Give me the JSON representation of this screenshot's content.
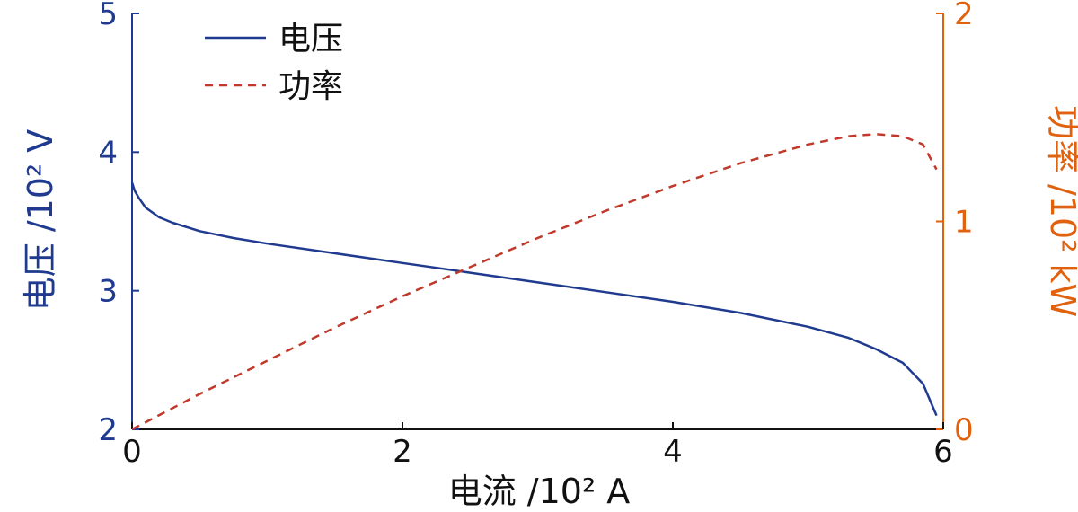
{
  "chart_data": {
    "type": "line",
    "xlabel": "电流 /10² A",
    "ylabel_left": "电压 /10² V",
    "ylabel_right": "功率 /10² kW",
    "xlim": [
      0,
      6
    ],
    "ylim_left": [
      2,
      5
    ],
    "ylim_right": [
      0,
      2
    ],
    "xticks": [
      "0",
      "2",
      "4",
      "6"
    ],
    "yticks_left": [
      "2",
      "3",
      "4",
      "5"
    ],
    "yticks_right": [
      "0",
      "1",
      "2"
    ],
    "legend_position": "top-left",
    "grid": false,
    "colors": {
      "voltage": "#1f3a8f",
      "power": "#c0392b",
      "right_axis": "#e0620f",
      "bottom_axis": "#111111"
    },
    "series": [
      {
        "name": "电压",
        "axis": "left",
        "style": "solid",
        "x": [
          0.0,
          0.02,
          0.05,
          0.1,
          0.2,
          0.3,
          0.5,
          0.75,
          1.0,
          1.5,
          2.0,
          2.5,
          3.0,
          3.5,
          4.0,
          4.5,
          5.0,
          5.3,
          5.5,
          5.7,
          5.85,
          5.95
        ],
        "values": [
          3.78,
          3.72,
          3.67,
          3.6,
          3.53,
          3.49,
          3.43,
          3.38,
          3.34,
          3.27,
          3.2,
          3.13,
          3.06,
          2.99,
          2.92,
          2.84,
          2.74,
          2.66,
          2.58,
          2.48,
          2.33,
          2.1
        ]
      },
      {
        "name": "功率",
        "axis": "right",
        "style": "dashed",
        "x": [
          0.0,
          0.5,
          1.0,
          1.5,
          2.0,
          2.5,
          3.0,
          3.5,
          4.0,
          4.5,
          5.0,
          5.3,
          5.5,
          5.7,
          5.85,
          5.95
        ],
        "values": [
          0.0,
          0.17,
          0.33,
          0.49,
          0.64,
          0.78,
          0.92,
          1.05,
          1.17,
          1.28,
          1.37,
          1.41,
          1.42,
          1.41,
          1.37,
          1.25
        ]
      }
    ]
  }
}
